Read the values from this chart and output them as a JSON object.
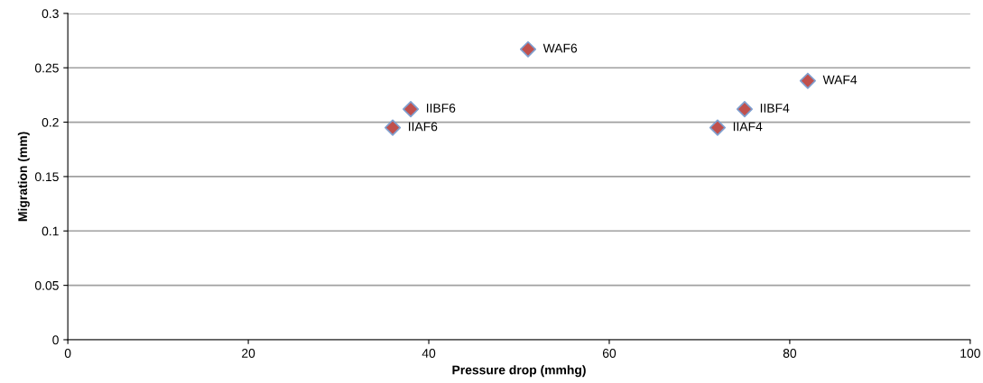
{
  "chart_data": {
    "type": "scatter",
    "xlabel": "Pressure drop (mmhg)",
    "ylabel": "Migration (mm)",
    "x": [
      36,
      38,
      51,
      72,
      75,
      82
    ],
    "series": [
      {
        "color": "#c0504d",
        "values": [
          0.195,
          0.212,
          0.267,
          0.195,
          0.212,
          0.238
        ]
      }
    ],
    "annotations": [
      {
        "text": "IIAF6",
        "x": 36,
        "y": 0.195
      },
      {
        "text": "IIBF6",
        "x": 38,
        "y": 0.212
      },
      {
        "text": "WAF6",
        "x": 51,
        "y": 0.267
      },
      {
        "text": "IIAF4",
        "x": 72,
        "y": 0.195
      },
      {
        "text": "IIBF4",
        "x": 75,
        "y": 0.212
      },
      {
        "text": "WAF4",
        "x": 82,
        "y": 0.238
      }
    ],
    "xlim": [
      0,
      100
    ],
    "xticks": [
      0,
      20,
      40,
      60,
      80,
      100
    ],
    "ylim": [
      0,
      0.3
    ],
    "yticks": [
      0,
      0.05,
      0.1,
      0.15,
      0.2,
      0.25,
      0.3
    ],
    "grid": "y",
    "marker": "diamond"
  }
}
